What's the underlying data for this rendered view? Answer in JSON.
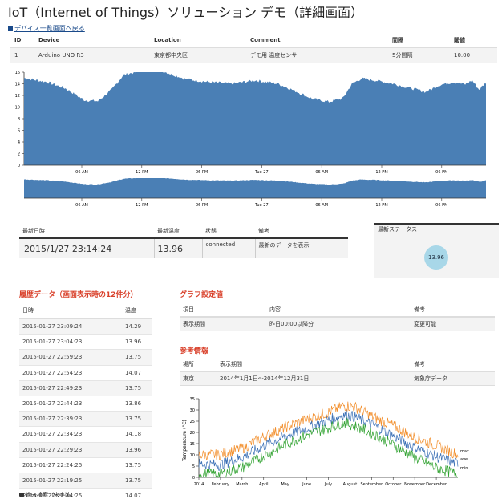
{
  "page": {
    "title": "IoT（Internet of Things）ソリューション デモ（詳細画面）",
    "back_link": "デバイス一覧画面へ戻る"
  },
  "device_table": {
    "headers": [
      "ID",
      "Device",
      "Location",
      "Comment",
      "間隔",
      "閾値"
    ],
    "row": [
      "1",
      "Arduino UNO R3",
      "東京都中央区",
      "デモ用 温度センサー",
      "5分間隔",
      "10.00"
    ]
  },
  "main_chart": {
    "y_ticks": [
      "0",
      "2",
      "4",
      "6",
      "8",
      "10",
      "12",
      "14",
      "16"
    ],
    "x_ticks": [
      "06 AM",
      "12 PM",
      "06 PM",
      "Tue 27",
      "06 AM",
      "12 PM",
      "06 PM"
    ],
    "color": "#4a7fb5",
    "series_keypoints": [
      [
        0,
        15.0
      ],
      [
        0.05,
        14.3
      ],
      [
        0.09,
        13.2
      ],
      [
        0.13,
        11.2
      ],
      [
        0.16,
        11.0
      ],
      [
        0.19,
        13.0
      ],
      [
        0.215,
        15.5
      ],
      [
        0.25,
        16.2
      ],
      [
        0.275,
        17.0
      ],
      [
        0.3,
        16.2
      ],
      [
        0.35,
        14.8
      ],
      [
        0.4,
        14.3
      ],
      [
        0.45,
        14.0
      ],
      [
        0.5,
        14.6
      ],
      [
        0.55,
        14.0
      ],
      [
        0.58,
        13.0
      ],
      [
        0.625,
        11.4
      ],
      [
        0.66,
        10.9
      ],
      [
        0.69,
        11.5
      ],
      [
        0.71,
        14.0
      ],
      [
        0.73,
        14.9
      ],
      [
        0.76,
        14.6
      ],
      [
        0.8,
        14.0
      ],
      [
        0.84,
        13.2
      ],
      [
        0.87,
        12.6
      ],
      [
        0.9,
        13.8
      ],
      [
        0.93,
        14.3
      ],
      [
        0.955,
        13.9
      ],
      [
        0.97,
        14.6
      ],
      [
        0.985,
        13.0
      ],
      [
        1.0,
        14.2
      ]
    ]
  },
  "nav_chart": {
    "x_ticks": [
      "06 AM",
      "12 PM",
      "06 PM",
      "Tue 27",
      "06 AM",
      "12 PM",
      "06 PM"
    ]
  },
  "latest": {
    "headers": [
      "最新日時",
      "最新温度",
      "状態",
      "備考"
    ],
    "datetime": "2015/1/27 23:14:24",
    "temperature": "13.96",
    "state": "connected",
    "note": "最新のデータを表示"
  },
  "status": {
    "title": "最新ステータス",
    "value": "13.96"
  },
  "history": {
    "title": "履歴データ（画面表示時の12件分）",
    "headers": [
      "日時",
      "温度"
    ],
    "rows": [
      [
        "2015-01-27 23:09:24",
        "14.29"
      ],
      [
        "2015-01-27 23:04:23",
        "13.96"
      ],
      [
        "2015-01-27 22:59:23",
        "13.75"
      ],
      [
        "2015-01-27 22:54:23",
        "14.07"
      ],
      [
        "2015-01-27 22:49:23",
        "13.75"
      ],
      [
        "2015-01-27 22:44:23",
        "13.86"
      ],
      [
        "2015-01-27 22:39:23",
        "13.75"
      ],
      [
        "2015-01-27 22:34:23",
        "14.18"
      ],
      [
        "2015-01-27 22:29:23",
        "13.96"
      ],
      [
        "2015-01-27 22:24:25",
        "13.75"
      ],
      [
        "2015-01-27 22:19:25",
        "13.75"
      ],
      [
        "2015-01-27 22:14:25",
        "14.07"
      ]
    ],
    "footer": "過去検索（未実装）"
  },
  "graph_settings": {
    "title": "グラフ設定値",
    "headers": [
      "項目",
      "内容",
      "備考"
    ],
    "row": [
      "表示期間",
      "昨日00:00以降分",
      "変更可能"
    ]
  },
  "reference": {
    "title": "参考情報",
    "headers": [
      "場所",
      "表示期間",
      "備考"
    ],
    "row": [
      "東京",
      "2014年1月1日～2014年12月31日",
      "気象庁データ"
    ]
  },
  "ref_chart": {
    "y_label": "Temperature (°C)",
    "y_ticks": [
      "0",
      "5",
      "10",
      "15",
      "20",
      "25",
      "30",
      "35"
    ],
    "x_ticks": [
      "2014",
      "February",
      "March",
      "April",
      "May",
      "June",
      "July",
      "August",
      "September",
      "October",
      "November",
      "December"
    ],
    "series": [
      {
        "name": "max",
        "color": "#f28e2b",
        "keypoints": [
          [
            0,
            10
          ],
          [
            0.08,
            10
          ],
          [
            0.17,
            13
          ],
          [
            0.25,
            18
          ],
          [
            0.34,
            22.5
          ],
          [
            0.42,
            26
          ],
          [
            0.5,
            29
          ],
          [
            0.56,
            32
          ],
          [
            0.6,
            31.5
          ],
          [
            0.67,
            27
          ],
          [
            0.75,
            23
          ],
          [
            0.83,
            18
          ],
          [
            0.92,
            14
          ],
          [
            1,
            10
          ]
        ]
      },
      {
        "name": "ave",
        "color": "#3a6fb5",
        "keypoints": [
          [
            0,
            6
          ],
          [
            0.08,
            5.5
          ],
          [
            0.17,
            9
          ],
          [
            0.25,
            14
          ],
          [
            0.34,
            18.5
          ],
          [
            0.42,
            22
          ],
          [
            0.5,
            25.5
          ],
          [
            0.56,
            28
          ],
          [
            0.6,
            27
          ],
          [
            0.67,
            23.5
          ],
          [
            0.75,
            18.5
          ],
          [
            0.83,
            13.5
          ],
          [
            0.92,
            9
          ],
          [
            1,
            6
          ]
        ]
      },
      {
        "name": "min",
        "color": "#2ca02c",
        "keypoints": [
          [
            0,
            1.5
          ],
          [
            0.08,
            1.5
          ],
          [
            0.17,
            4.5
          ],
          [
            0.25,
            9.5
          ],
          [
            0.34,
            15
          ],
          [
            0.42,
            19
          ],
          [
            0.5,
            22
          ],
          [
            0.56,
            24.5
          ],
          [
            0.6,
            23
          ],
          [
            0.67,
            19.5
          ],
          [
            0.75,
            14.5
          ],
          [
            0.83,
            9
          ],
          [
            0.92,
            4
          ],
          [
            1,
            1.5
          ]
        ]
      }
    ]
  }
}
